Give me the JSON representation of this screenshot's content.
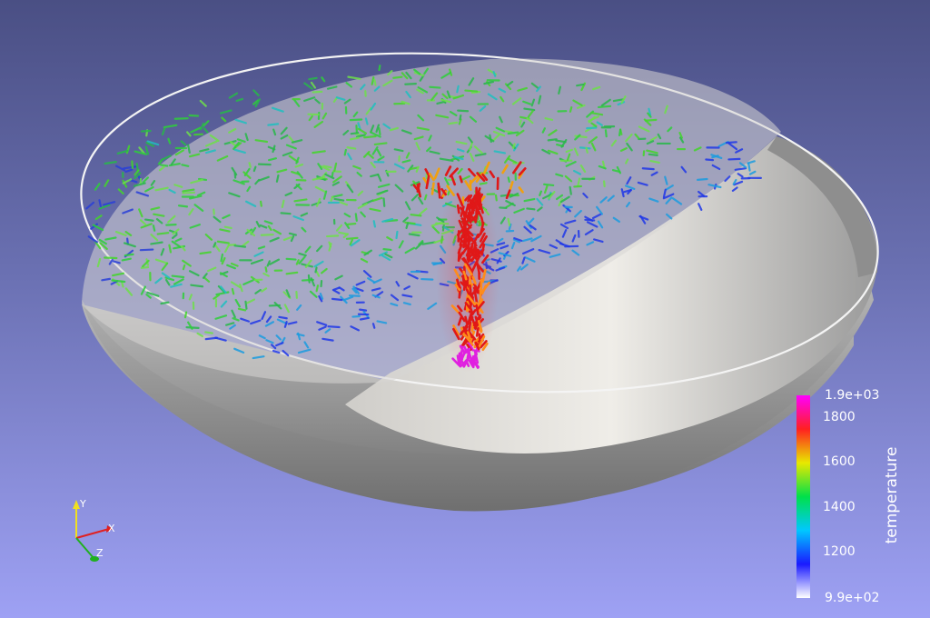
{
  "colorbar": {
    "title": "temperature",
    "max_label": "1.9e+03",
    "min_label": "9.9e+02",
    "ticks": [
      "1800",
      "1600",
      "1400",
      "1200"
    ],
    "min": 990,
    "max": 1900,
    "tick_values": [
      1800,
      1600,
      1400,
      1200
    ],
    "colors": [
      "#ffffff",
      "#1a1aff",
      "#00c8ff",
      "#00e04a",
      "#e8e800",
      "#ff2020",
      "#ff00ff"
    ]
  },
  "axes_widget": {
    "x": "X",
    "y": "Y",
    "z": "Z",
    "x_color": "#e02020",
    "y_color": "#f0e020",
    "z_color": "#20b020"
  },
  "colors": {
    "background_top": "#4a4f84",
    "background_bottom": "#9ea1f4",
    "shell_outer": "#8d8d8d",
    "shell_inner": "#ebe8e3"
  }
}
